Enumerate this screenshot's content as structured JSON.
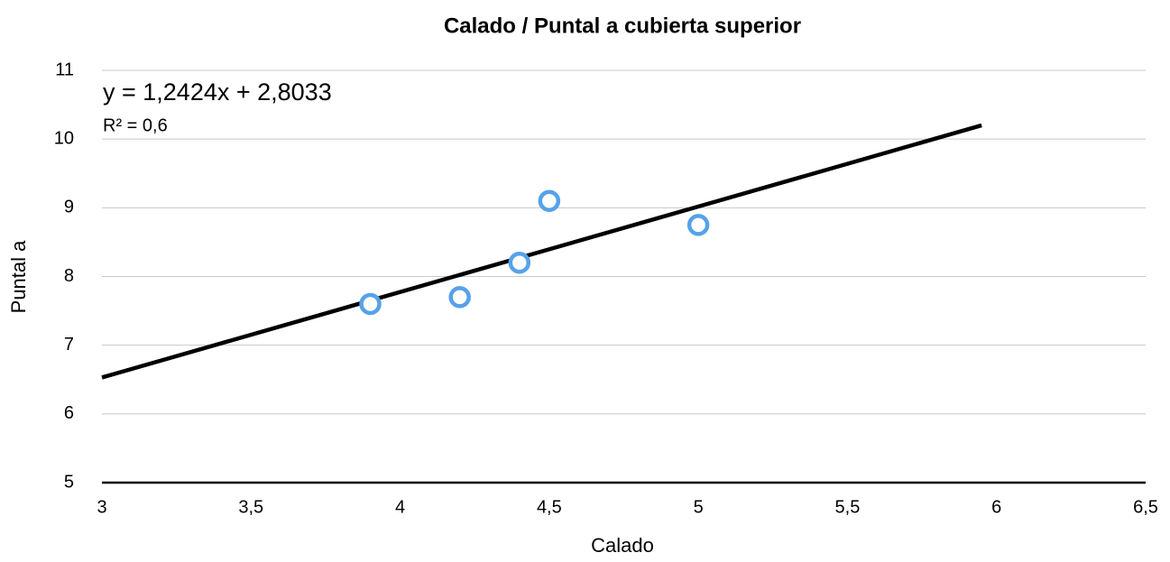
{
  "chart_data": {
    "type": "scatter",
    "title": "Calado / Puntal a cubierta superior",
    "x_label": "Calado",
    "y_label": "Puntal a",
    "series": [
      {
        "x": [
          3.9,
          4.2,
          4.4,
          4.5,
          5.0
        ],
        "values": [
          7.6,
          7.7,
          8.2,
          9.1,
          8.75
        ],
        "color": "#55a2ea"
      }
    ],
    "trendline": {
      "x": [
        3,
        5.95
      ],
      "values": [
        6.53,
        10.2
      ],
      "color": "#000000"
    },
    "equation": "y = 1,2424x + 2,8033",
    "r_squared": "R² = 0,6",
    "xlim": [
      3,
      6.5
    ],
    "xticks": [
      3,
      {
        "value": 3.5,
        "label": "3,5"
      },
      4,
      {
        "value": 4.5,
        "label": "4,5"
      },
      5,
      {
        "value": 5.5,
        "label": "5,5"
      },
      6,
      {
        "value": 6.5,
        "label": "6,5"
      }
    ],
    "ylim": [
      5,
      11
    ],
    "yticks": [
      5,
      6,
      7,
      8,
      9,
      10,
      11
    ],
    "grid": true
  }
}
